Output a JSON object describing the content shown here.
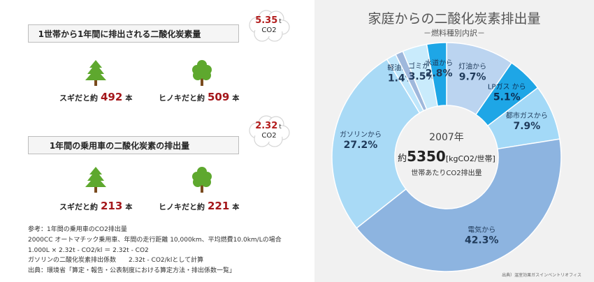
{
  "household": {
    "banner": "1世帯から1年間に排出される二酸化炭素量",
    "amount": "5.35",
    "amount_unit": "t",
    "gas": "CO2",
    "sugi_prefix": "スギだと約",
    "sugi_value": "492",
    "hinoki_prefix": "ヒノキだと約",
    "hinoki_value": "509",
    "unit": "本"
  },
  "car": {
    "banner": "1年間の乗用車の二酸化炭素の排出量",
    "amount": "2.32",
    "amount_unit": "t",
    "gas": "CO2",
    "sugi_prefix": "スギだと約",
    "sugi_value": "213",
    "hinoki_prefix": "ヒノキだと約",
    "hinoki_value": "221",
    "unit": "本"
  },
  "notes": [
    "参考：1年間の乗用車のCO2排出量",
    "2000CC オートマチック乗用車、年間の走行距離 10,000km、平均燃費10.0km/Lの場合",
    "1.000L × 2.32t - CO2/kl ＝ 2.32t - CO2",
    "ガソリンの二酸化炭素排出係数　　2.32t - CO2/klとして計算",
    "出典：環境省「算定・報告・公表制度における算定方法・排出係数一覧」"
  ],
  "chart": {
    "title": "家庭からの二酸化炭素排出量",
    "subtitle": "－燃料種別内訳－",
    "center_year": "2007年",
    "center_prefix": "約",
    "center_value": "5350",
    "center_unit": "[kgCO2/世帯]",
    "center_caption": "世帯あたりCO2排出量",
    "source": "出典）温室効果ガスインベントリオフィス",
    "colors": {
      "electricity": "#8db4e0",
      "gasoline": "#a9daf6",
      "light_oil": "#bfe6fb",
      "garbage": "#c9ebfc",
      "water": "#9fb8dc",
      "water_supply": "#1ea6e6",
      "kerosene": "#bbd4f0",
      "lpg": "#1ea6e6",
      "city_gas": "#a3d9f7"
    }
  },
  "chart_data": {
    "type": "pie",
    "title": "家庭からの二酸化炭素排出量",
    "subtitle": "－燃料種別内訳－",
    "categories": [
      "灯油から",
      "LPガス から",
      "都市ガスから",
      "電気から",
      "ガソリンから",
      "軽油から",
      "",
      "ゴミから",
      "水道から"
    ],
    "values": [
      9.7,
      5.1,
      7.9,
      42.3,
      27.2,
      1.4,
      1.1,
      3.5,
      2.8
    ],
    "value_labels": [
      "9.7%",
      "5.1%",
      "7.9%",
      "42.3%",
      "27.2%",
      "1.4%",
      "",
      "3.5%",
      "2.8%"
    ],
    "colors": [
      "#bbd4f0",
      "#1ea6e6",
      "#a3d9f7",
      "#8db4e0",
      "#a9daf6",
      "#bfe6fb",
      "#9fb8dc",
      "#c9ebfc",
      "#1ea6e6"
    ]
  }
}
